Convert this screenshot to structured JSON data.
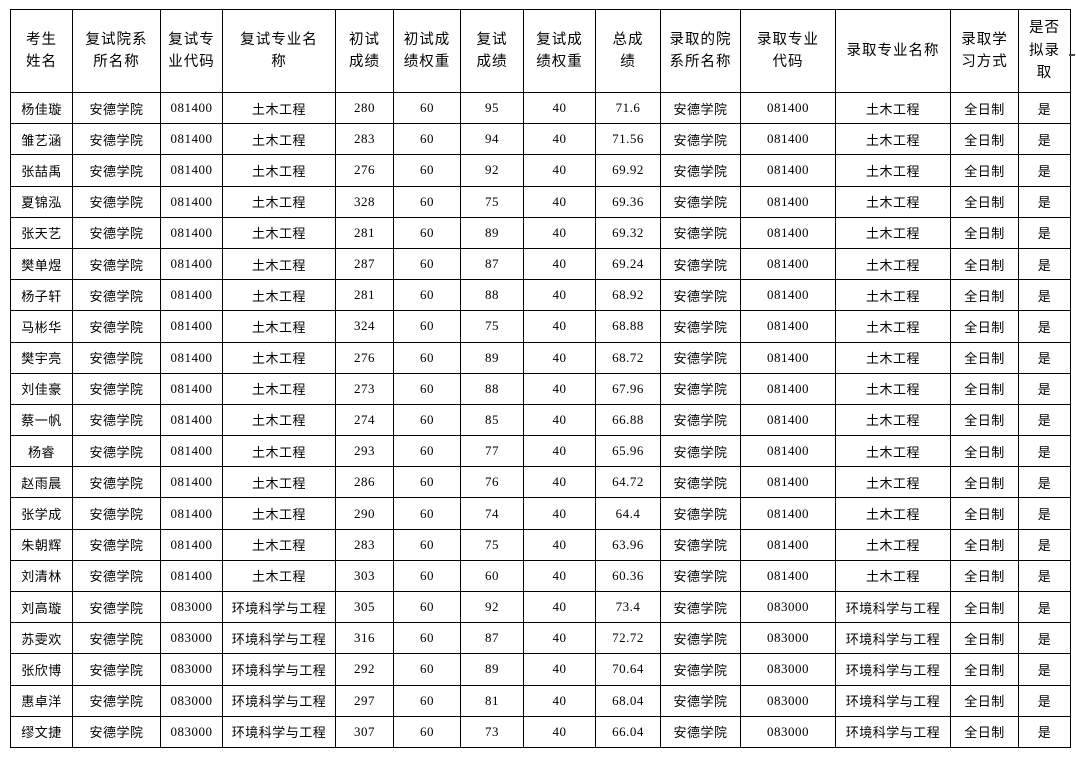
{
  "table": {
    "columns": [
      {
        "label": "考生\n姓名"
      },
      {
        "label": "复试院系\n所名称"
      },
      {
        "label": "复试专\n业代码"
      },
      {
        "label": "复试专业名\n称"
      },
      {
        "label": "初试\n成绩"
      },
      {
        "label": "初试成\n绩权重"
      },
      {
        "label": "复试\n成绩"
      },
      {
        "label": "复试成\n绩权重"
      },
      {
        "label": "总成\n绩"
      },
      {
        "label": "录取的院\n系所名称"
      },
      {
        "label": "录取专业\n代码"
      },
      {
        "label": "录取专业名称"
      },
      {
        "label": "录取学\n习方式"
      },
      {
        "label": "是否\n拟录\n取"
      }
    ],
    "rows": [
      [
        "杨佳璇",
        "安德学院",
        "081400",
        "土木工程",
        "280",
        "60",
        "95",
        "40",
        "71.6",
        "安德学院",
        "081400",
        "土木工程",
        "全日制",
        "是"
      ],
      [
        "雏艺涵",
        "安德学院",
        "081400",
        "土木工程",
        "283",
        "60",
        "94",
        "40",
        "71.56",
        "安德学院",
        "081400",
        "土木工程",
        "全日制",
        "是"
      ],
      [
        "张喆禹",
        "安德学院",
        "081400",
        "土木工程",
        "276",
        "60",
        "92",
        "40",
        "69.92",
        "安德学院",
        "081400",
        "土木工程",
        "全日制",
        "是"
      ],
      [
        "夏锦泓",
        "安德学院",
        "081400",
        "土木工程",
        "328",
        "60",
        "75",
        "40",
        "69.36",
        "安德学院",
        "081400",
        "土木工程",
        "全日制",
        "是"
      ],
      [
        "张天艺",
        "安德学院",
        "081400",
        "土木工程",
        "281",
        "60",
        "89",
        "40",
        "69.32",
        "安德学院",
        "081400",
        "土木工程",
        "全日制",
        "是"
      ],
      [
        "樊单煜",
        "安德学院",
        "081400",
        "土木工程",
        "287",
        "60",
        "87",
        "40",
        "69.24",
        "安德学院",
        "081400",
        "土木工程",
        "全日制",
        "是"
      ],
      [
        "杨子轩",
        "安德学院",
        "081400",
        "土木工程",
        "281",
        "60",
        "88",
        "40",
        "68.92",
        "安德学院",
        "081400",
        "土木工程",
        "全日制",
        "是"
      ],
      [
        "马彬华",
        "安德学院",
        "081400",
        "土木工程",
        "324",
        "60",
        "75",
        "40",
        "68.88",
        "安德学院",
        "081400",
        "土木工程",
        "全日制",
        "是"
      ],
      [
        "樊宇亮",
        "安德学院",
        "081400",
        "土木工程",
        "276",
        "60",
        "89",
        "40",
        "68.72",
        "安德学院",
        "081400",
        "土木工程",
        "全日制",
        "是"
      ],
      [
        "刘佳豪",
        "安德学院",
        "081400",
        "土木工程",
        "273",
        "60",
        "88",
        "40",
        "67.96",
        "安德学院",
        "081400",
        "土木工程",
        "全日制",
        "是"
      ],
      [
        "蔡一帆",
        "安德学院",
        "081400",
        "土木工程",
        "274",
        "60",
        "85",
        "40",
        "66.88",
        "安德学院",
        "081400",
        "土木工程",
        "全日制",
        "是"
      ],
      [
        "杨睿",
        "安德学院",
        "081400",
        "土木工程",
        "293",
        "60",
        "77",
        "40",
        "65.96",
        "安德学院",
        "081400",
        "土木工程",
        "全日制",
        "是"
      ],
      [
        "赵雨晨",
        "安德学院",
        "081400",
        "土木工程",
        "286",
        "60",
        "76",
        "40",
        "64.72",
        "安德学院",
        "081400",
        "土木工程",
        "全日制",
        "是"
      ],
      [
        "张学成",
        "安德学院",
        "081400",
        "土木工程",
        "290",
        "60",
        "74",
        "40",
        "64.4",
        "安德学院",
        "081400",
        "土木工程",
        "全日制",
        "是"
      ],
      [
        "朱朝辉",
        "安德学院",
        "081400",
        "土木工程",
        "283",
        "60",
        "75",
        "40",
        "63.96",
        "安德学院",
        "081400",
        "土木工程",
        "全日制",
        "是"
      ],
      [
        "刘清林",
        "安德学院",
        "081400",
        "土木工程",
        "303",
        "60",
        "60",
        "40",
        "60.36",
        "安德学院",
        "081400",
        "土木工程",
        "全日制",
        "是"
      ],
      [
        "刘高璇",
        "安德学院",
        "083000",
        "环境科学与工程",
        "305",
        "60",
        "92",
        "40",
        "73.4",
        "安德学院",
        "083000",
        "环境科学与工程",
        "全日制",
        "是"
      ],
      [
        "苏雯欢",
        "安德学院",
        "083000",
        "环境科学与工程",
        "316",
        "60",
        "87",
        "40",
        "72.72",
        "安德学院",
        "083000",
        "环境科学与工程",
        "全日制",
        "是"
      ],
      [
        "张欣博",
        "安德学院",
        "083000",
        "环境科学与工程",
        "292",
        "60",
        "89",
        "40",
        "70.64",
        "安德学院",
        "083000",
        "环境科学与工程",
        "全日制",
        "是"
      ],
      [
        "惠卓洋",
        "安德学院",
        "083000",
        "环境科学与工程",
        "297",
        "60",
        "81",
        "40",
        "68.04",
        "安德学院",
        "083000",
        "环境科学与工程",
        "全日制",
        "是"
      ],
      [
        "缪文捷",
        "安德学院",
        "083000",
        "环境科学与工程",
        "307",
        "60",
        "73",
        "40",
        "66.04",
        "安德学院",
        "083000",
        "环境科学与工程",
        "全日制",
        "是"
      ]
    ]
  }
}
